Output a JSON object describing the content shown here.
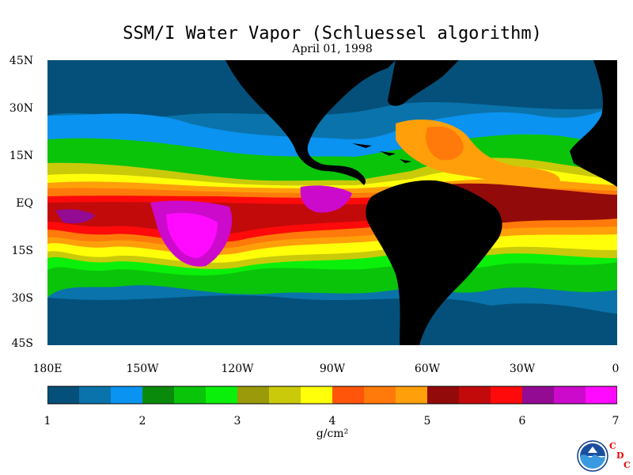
{
  "map": {
    "title": "SSM/I Water Vapor (Schluessel algorithm)",
    "date": "April 01, 1998",
    "lat_labels": [
      "45N",
      "30N",
      "15N",
      "EQ",
      "15S",
      "30S",
      "45S"
    ],
    "lon_labels": [
      "180E",
      "150W",
      "120W",
      "90W",
      "60W",
      "30W",
      "0"
    ],
    "units": "g/cm²",
    "color_scale": {
      "min": 1,
      "max": 7,
      "tick_labels": [
        "1",
        "2",
        "3",
        "4",
        "5",
        "6",
        "7"
      ],
      "colors": [
        "#04507a",
        "#0a73ab",
        "#0a93f0",
        "#0a8a0a",
        "#0ac40a",
        "#0af00a",
        "#9a9a0a",
        "#caca0a",
        "#ffff0a",
        "#ff550a",
        "#ff7a0a",
        "#ff9f0a",
        "#930a0a",
        "#c20a0a",
        "#ff0a0a",
        "#930a93",
        "#cc0acc",
        "#ff0aff"
      ]
    }
  },
  "logo": {
    "noaa_text": "NOAA",
    "cdc_letters": [
      "C",
      "D",
      "C"
    ]
  }
}
